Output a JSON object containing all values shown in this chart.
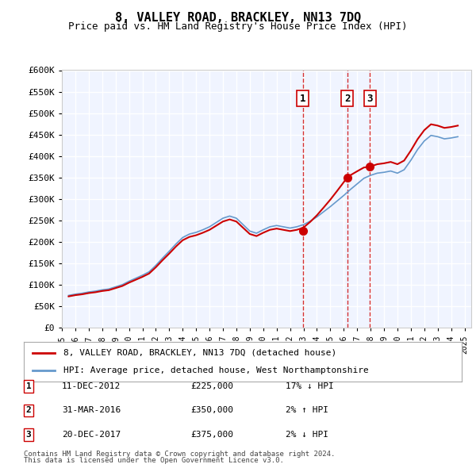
{
  "title": "8, VALLEY ROAD, BRACKLEY, NN13 7DQ",
  "subtitle": "Price paid vs. HM Land Registry's House Price Index (HPI)",
  "legend_line1": "8, VALLEY ROAD, BRACKLEY, NN13 7DQ (detached house)",
  "legend_line2": "HPI: Average price, detached house, West Northamptonshire",
  "footnote1": "Contains HM Land Registry data © Crown copyright and database right 2024.",
  "footnote2": "This data is licensed under the Open Government Licence v3.0.",
  "transactions": [
    {
      "num": 1,
      "date": "11-DEC-2012",
      "price": "£225,000",
      "hpi": "17% ↓ HPI",
      "x_year": 2012.95
    },
    {
      "num": 2,
      "date": "31-MAR-2016",
      "price": "£350,000",
      "hpi": "2% ↑ HPI",
      "x_year": 2016.25
    },
    {
      "num": 3,
      "date": "20-DEC-2017",
      "price": "£375,000",
      "hpi": "2% ↓ HPI",
      "x_year": 2017.96
    }
  ],
  "hpi_color": "#6699cc",
  "sale_color": "#cc0000",
  "vline_color": "#cc0000",
  "dot_color": "#cc0000",
  "background_color": "#ddeeff",
  "plot_bg": "#f0f4ff",
  "grid_color": "#ffffff",
  "ylim": [
    0,
    600000
  ],
  "xlim_start": 1995,
  "xlim_end": 2025.5
}
